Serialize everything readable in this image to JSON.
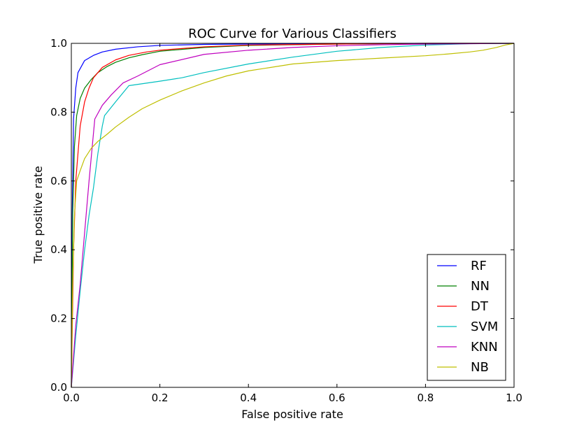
{
  "chart_data": {
    "type": "line",
    "title": "ROC Curve for Various Classifiers",
    "xlabel": "False positive rate",
    "ylabel": "True positive rate",
    "xlim": [
      0,
      1
    ],
    "ylim": [
      0,
      1
    ],
    "xticks": [
      "0.0",
      "0.2",
      "0.4",
      "0.6",
      "0.8",
      "1.0"
    ],
    "yticks": [
      "0.0",
      "0.2",
      "0.4",
      "0.6",
      "0.8",
      "1.0"
    ],
    "grid": false,
    "legend_position": "lower-right",
    "series": [
      {
        "name": "RF",
        "color": "#0000ff",
        "x": [
          0,
          0.002,
          0.005,
          0.01,
          0.015,
          0.03,
          0.05,
          0.07,
          0.1,
          0.15,
          0.2,
          0.3,
          0.5,
          0.7,
          1.0
        ],
        "y": [
          0,
          0.5,
          0.78,
          0.87,
          0.915,
          0.95,
          0.965,
          0.975,
          0.983,
          0.99,
          0.994,
          0.997,
          0.999,
          1.0,
          1.0
        ]
      },
      {
        "name": "NN",
        "color": "#008000",
        "x": [
          0,
          0.003,
          0.007,
          0.012,
          0.02,
          0.03,
          0.045,
          0.06,
          0.08,
          0.1,
          0.13,
          0.16,
          0.2,
          0.3,
          0.4,
          0.6,
          0.8,
          1.0
        ],
        "y": [
          0,
          0.5,
          0.7,
          0.79,
          0.84,
          0.87,
          0.895,
          0.915,
          0.932,
          0.945,
          0.958,
          0.967,
          0.977,
          0.988,
          0.994,
          0.998,
          1.0,
          1.0
        ]
      },
      {
        "name": "DT",
        "color": "#ff0000",
        "x": [
          0,
          0.005,
          0.01,
          0.015,
          0.02,
          0.03,
          0.04,
          0.05,
          0.07,
          0.1,
          0.13,
          0.17,
          0.2,
          0.3,
          0.4,
          0.6,
          0.8,
          1.0
        ],
        "y": [
          0,
          0.4,
          0.6,
          0.68,
          0.76,
          0.83,
          0.87,
          0.9,
          0.93,
          0.952,
          0.965,
          0.975,
          0.98,
          0.99,
          0.995,
          0.998,
          1.0,
          1.0
        ]
      },
      {
        "name": "SVM",
        "color": "#00bfbf",
        "x": [
          0,
          0.01,
          0.02,
          0.03,
          0.04,
          0.05,
          0.06,
          0.07,
          0.075,
          0.1,
          0.13,
          0.2,
          0.25,
          0.3,
          0.4,
          0.5,
          0.6,
          0.7,
          0.8,
          0.9,
          1.0
        ],
        "y": [
          0,
          0.15,
          0.28,
          0.4,
          0.5,
          0.58,
          0.68,
          0.76,
          0.79,
          0.83,
          0.877,
          0.89,
          0.9,
          0.915,
          0.94,
          0.96,
          0.977,
          0.988,
          0.995,
          0.999,
          1.0
        ]
      },
      {
        "name": "KNN",
        "color": "#bf00bf",
        "x": [
          0,
          0.01,
          0.02,
          0.03,
          0.04,
          0.053,
          0.07,
          0.09,
          0.117,
          0.15,
          0.2,
          0.3,
          0.4,
          0.5,
          0.6,
          0.7,
          0.8,
          0.9,
          1.0
        ],
        "y": [
          0,
          0.18,
          0.3,
          0.45,
          0.6,
          0.78,
          0.82,
          0.85,
          0.885,
          0.905,
          0.938,
          0.968,
          0.98,
          0.988,
          0.993,
          0.996,
          0.998,
          0.999,
          1.0
        ]
      },
      {
        "name": "NB",
        "color": "#bfbf00",
        "x": [
          0,
          0.003,
          0.007,
          0.012,
          0.02,
          0.03,
          0.045,
          0.06,
          0.08,
          0.1,
          0.13,
          0.16,
          0.2,
          0.25,
          0.3,
          0.35,
          0.4,
          0.5,
          0.6,
          0.7,
          0.8,
          0.85,
          0.9,
          0.93,
          0.96,
          0.98,
          1.0
        ],
        "y": [
          0,
          0.3,
          0.5,
          0.6,
          0.63,
          0.665,
          0.695,
          0.715,
          0.735,
          0.757,
          0.785,
          0.81,
          0.835,
          0.862,
          0.885,
          0.905,
          0.92,
          0.94,
          0.95,
          0.957,
          0.964,
          0.969,
          0.975,
          0.98,
          0.988,
          0.995,
          1.0
        ]
      }
    ]
  }
}
